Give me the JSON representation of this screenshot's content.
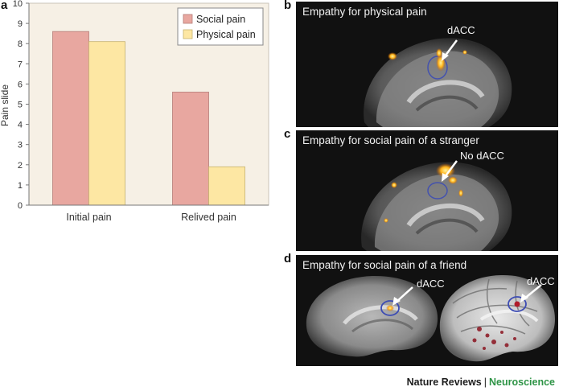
{
  "panels": {
    "a": "a",
    "b": "b",
    "c": "c",
    "d": "d"
  },
  "chart_data": {
    "type": "bar",
    "categories": [
      "Initial pain",
      "Relived pain"
    ],
    "series": [
      {
        "name": "Social pain",
        "values": [
          8.6,
          5.6
        ],
        "color": "#e8a7a0"
      },
      {
        "name": "Physical pain",
        "values": [
          8.1,
          1.9
        ],
        "color": "#fde7a3"
      }
    ],
    "ylabel": "Pain slide",
    "yticks": [
      "0",
      "1",
      "2",
      "3",
      "4",
      "5",
      "6",
      "7",
      "8",
      "9",
      "10"
    ],
    "ylim": [
      0,
      10
    ],
    "legend_position": "top-right",
    "plot_background": "#f6f0e5"
  },
  "brain_b": {
    "title": "Empathy for physical pain",
    "label": "dACC"
  },
  "brain_c": {
    "title": "Empathy for social pain of a stranger",
    "label": "No dACC"
  },
  "brain_d": {
    "title": "Empathy for social pain of a friend",
    "label_left": "dACC",
    "label_right": "dACC"
  },
  "footer": {
    "journal": "Nature Reviews",
    "separator": "|",
    "section": "Neuroscience"
  }
}
